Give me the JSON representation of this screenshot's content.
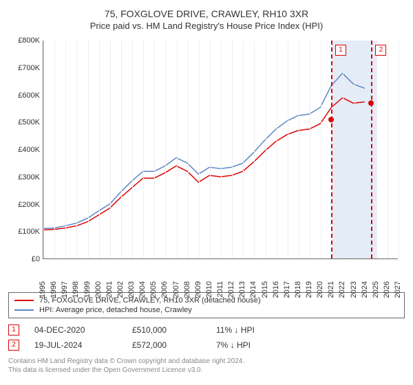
{
  "title": "75, FOXGLOVE DRIVE, CRAWLEY, RH10 3XR",
  "subtitle": "Price paid vs. HM Land Registry's House Price Index (HPI)",
  "chart": {
    "type": "line",
    "x_years": [
      1995,
      1996,
      1997,
      1998,
      1999,
      2000,
      2001,
      2002,
      2003,
      2004,
      2005,
      2006,
      2007,
      2008,
      2009,
      2010,
      2011,
      2012,
      2013,
      2014,
      2015,
      2016,
      2017,
      2018,
      2019,
      2020,
      2021,
      2022,
      2023,
      2024,
      2025,
      2026,
      2027
    ],
    "xlim": [
      1995,
      2027
    ],
    "ylim": [
      0,
      800000
    ],
    "ytick_step": 100000,
    "ytick_labels": [
      "£0",
      "£100K",
      "£200K",
      "£300K",
      "£400K",
      "£500K",
      "£600K",
      "£700K",
      "£800K"
    ],
    "grid_color": "#eeeeee",
    "axis_color": "#666666",
    "background_color": "#ffffff",
    "series": [
      {
        "name": "price_paid",
        "label": "75, FOXGLOVE DRIVE, CRAWLEY, RH10 3XR (detached house)",
        "color": "#dd0000",
        "width": 1.5,
        "data": [
          [
            1995,
            105000
          ],
          [
            1996,
            107000
          ],
          [
            1997,
            112000
          ],
          [
            1998,
            120000
          ],
          [
            1999,
            135000
          ],
          [
            2000,
            160000
          ],
          [
            2001,
            185000
          ],
          [
            2002,
            225000
          ],
          [
            2003,
            260000
          ],
          [
            2004,
            295000
          ],
          [
            2005,
            295000
          ],
          [
            2006,
            315000
          ],
          [
            2007,
            340000
          ],
          [
            2008,
            320000
          ],
          [
            2009,
            280000
          ],
          [
            2010,
            305000
          ],
          [
            2011,
            300000
          ],
          [
            2012,
            305000
          ],
          [
            2013,
            320000
          ],
          [
            2014,
            355000
          ],
          [
            2015,
            395000
          ],
          [
            2016,
            430000
          ],
          [
            2017,
            455000
          ],
          [
            2018,
            470000
          ],
          [
            2019,
            475000
          ],
          [
            2020,
            495000
          ],
          [
            2021,
            555000
          ],
          [
            2022,
            590000
          ],
          [
            2023,
            570000
          ],
          [
            2024,
            575000
          ]
        ]
      },
      {
        "name": "hpi",
        "label": "HPI: Average price, detached house, Crawley",
        "color": "#5b86c5",
        "width": 1.5,
        "data": [
          [
            1995,
            110000
          ],
          [
            1996,
            112000
          ],
          [
            1997,
            120000
          ],
          [
            1998,
            130000
          ],
          [
            1999,
            148000
          ],
          [
            2000,
            175000
          ],
          [
            2001,
            200000
          ],
          [
            2002,
            245000
          ],
          [
            2003,
            285000
          ],
          [
            2004,
            320000
          ],
          [
            2005,
            320000
          ],
          [
            2006,
            340000
          ],
          [
            2007,
            370000
          ],
          [
            2008,
            350000
          ],
          [
            2009,
            310000
          ],
          [
            2010,
            335000
          ],
          [
            2011,
            330000
          ],
          [
            2012,
            335000
          ],
          [
            2013,
            350000
          ],
          [
            2014,
            390000
          ],
          [
            2015,
            435000
          ],
          [
            2016,
            475000
          ],
          [
            2017,
            505000
          ],
          [
            2018,
            525000
          ],
          [
            2019,
            530000
          ],
          [
            2020,
            555000
          ],
          [
            2021,
            635000
          ],
          [
            2022,
            680000
          ],
          [
            2023,
            640000
          ],
          [
            2024,
            625000
          ]
        ]
      }
    ],
    "markers": [
      {
        "id": "1",
        "year": 2020.92,
        "value": 510000,
        "color": "#dd0000"
      },
      {
        "id": "2",
        "year": 2024.55,
        "value": 572000,
        "color": "#dd0000"
      }
    ],
    "shade": {
      "from": 2021,
      "to": 2025,
      "color": "#e4ecf7"
    }
  },
  "legend": [
    {
      "color": "#dd0000",
      "label": "75, FOXGLOVE DRIVE, CRAWLEY, RH10 3XR (detached house)"
    },
    {
      "color": "#5b86c5",
      "label": "HPI: Average price, detached house, Crawley"
    }
  ],
  "transactions": [
    {
      "id": "1",
      "date": "04-DEC-2020",
      "price": "£510,000",
      "delta": "11% ↓ HPI",
      "color": "#dd0000"
    },
    {
      "id": "2",
      "date": "19-JUL-2024",
      "price": "£572,000",
      "delta": "7% ↓ HPI",
      "color": "#dd0000"
    }
  ],
  "copyright_line1": "Contains HM Land Registry data © Crown copyright and database right 2024.",
  "copyright_line2": "This data is licensed under the Open Government Licence v3.0."
}
